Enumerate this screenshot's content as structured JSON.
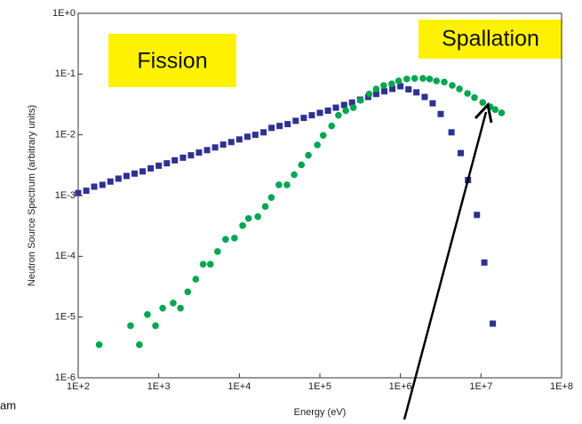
{
  "chart_data": {
    "type": "scatter",
    "x_label": "Energy (eV)",
    "y_label": "Neutron Source Spectrum (arbitrary units)",
    "x_log": true,
    "y_log": true,
    "grid": false,
    "xlim": [
      100,
      100000000
    ],
    "ylim": [
      1e-06,
      1
    ],
    "xticks": [
      {
        "value": 100,
        "label": "1E+2"
      },
      {
        "value": 1000,
        "label": "1E+3"
      },
      {
        "value": 10000,
        "label": "1E+4"
      },
      {
        "value": 100000,
        "label": "1E+5"
      },
      {
        "value": 1000000,
        "label": "1E+6"
      },
      {
        "value": 10000000,
        "label": "1E+7"
      },
      {
        "value": 100000000,
        "label": "1E+8"
      }
    ],
    "yticks": [
      {
        "value": 1,
        "label": "1E+0"
      },
      {
        "value": 0.1,
        "label": "1E-1"
      },
      {
        "value": 0.01,
        "label": "1E-2"
      },
      {
        "value": 0.001,
        "label": "1E-3"
      },
      {
        "value": 0.0001,
        "label": "1E-4"
      },
      {
        "value": 1e-05,
        "label": "1E-5"
      },
      {
        "value": 1e-06,
        "label": "1E-6"
      }
    ],
    "annotations": [
      "Fission",
      "Spallation",
      "am"
    ],
    "series": [
      {
        "color": "#2e3192",
        "marker": "square",
        "x": [
          100,
          126,
          158,
          200,
          251,
          316,
          398,
          501,
          631,
          794,
          1000,
          1260,
          1580,
          2000,
          2510,
          3160,
          3980,
          5010,
          6310,
          7940,
          10000,
          12600,
          15800,
          20000,
          25100,
          31600,
          39800,
          50100,
          63100,
          79400,
          100000,
          126000,
          158000,
          200000,
          251000,
          316000,
          398000,
          501000,
          631000,
          794000,
          1000000,
          1260000,
          1580000,
          2000000,
          2510000,
          3160000,
          4300000,
          5600000,
          6900000,
          8900000,
          11000000,
          14000000
        ],
        "values": [
          0.0011,
          0.0012,
          0.0014,
          0.0015,
          0.0017,
          0.0019,
          0.0021,
          0.0023,
          0.0025,
          0.0028,
          0.0031,
          0.0034,
          0.0038,
          0.0042,
          0.0046,
          0.0051,
          0.0056,
          0.0062,
          0.0069,
          0.0076,
          0.0084,
          0.0093,
          0.01,
          0.011,
          0.013,
          0.014,
          0.015,
          0.017,
          0.019,
          0.021,
          0.023,
          0.025,
          0.028,
          0.031,
          0.034,
          0.038,
          0.042,
          0.047,
          0.052,
          0.057,
          0.063,
          0.056,
          0.05,
          0.042,
          0.033,
          0.022,
          0.011,
          0.005,
          0.0018,
          0.00048,
          7.9e-05,
          7.8e-06
        ]
      },
      {
        "color": "#00a651",
        "marker": "circle",
        "x": [
          182,
          447,
          575,
          724,
          912,
          1120,
          1510,
          1860,
          2290,
          2880,
          3550,
          4370,
          5370,
          6760,
          8710,
          11000,
          13000,
          17000,
          21000,
          25000,
          31000,
          39000,
          48000,
          59000,
          72000,
          93000,
          110000,
          140000,
          170000,
          210000,
          260000,
          320000,
          410000,
          500000,
          620000,
          780000,
          950000,
          1200000,
          1500000,
          1900000,
          2300000,
          2800000,
          3500000,
          4400000,
          5400000,
          6800000,
          8300000,
          10500000,
          13000000,
          15000000,
          18000000
        ],
        "values": [
          3.5e-06,
          7.2e-06,
          3.5e-06,
          1.1e-05,
          7.2e-06,
          1.4e-05,
          1.7e-05,
          1.4e-05,
          2.6e-05,
          4.2e-05,
          7.4e-05,
          7.4e-05,
          0.00012,
          0.00019,
          0.0002,
          0.00032,
          0.00042,
          0.00045,
          0.00066,
          0.00093,
          0.0015,
          0.0015,
          0.0022,
          0.0032,
          0.0046,
          0.0068,
          0.0098,
          0.014,
          0.021,
          0.025,
          0.028,
          0.037,
          0.047,
          0.057,
          0.065,
          0.069,
          0.077,
          0.083,
          0.085,
          0.085,
          0.083,
          0.077,
          0.074,
          0.065,
          0.057,
          0.048,
          0.041,
          0.034,
          0.029,
          0.026,
          0.023
        ]
      }
    ]
  }
}
